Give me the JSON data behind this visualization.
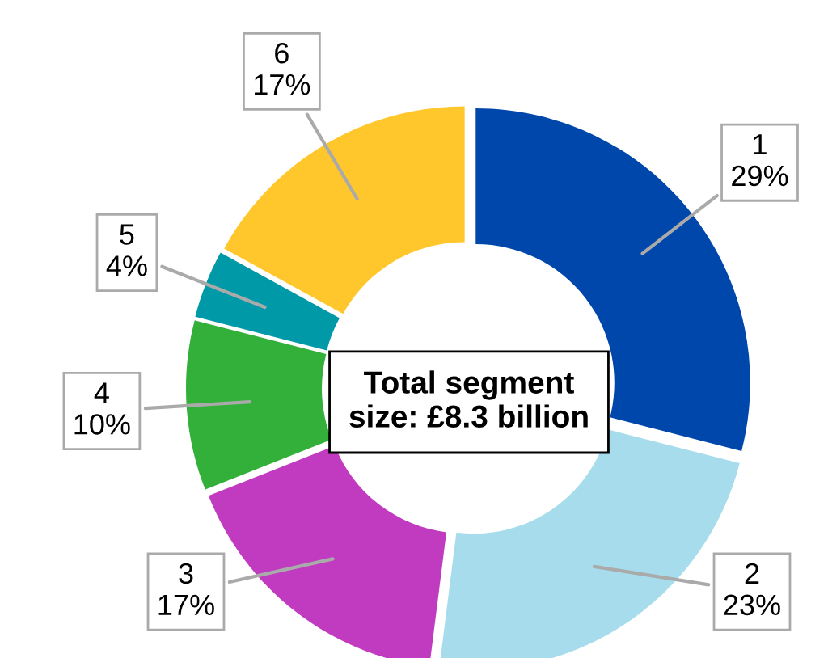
{
  "chart_data": {
    "type": "donut",
    "categories": [
      "1",
      "2",
      "3",
      "4",
      "5",
      "6"
    ],
    "values": [
      29,
      23,
      17,
      10,
      4,
      17
    ],
    "colors": [
      "#0047ab",
      "#a6dceb",
      "#c03bc0",
      "#33b03a",
      "#0099a8",
      "#ffc72c"
    ],
    "value_labels": [
      "29%",
      "23%",
      "17%",
      "10%",
      "4%",
      "17%"
    ],
    "annotations": [
      "Total segment\nsize: £8.3 billion"
    ]
  }
}
